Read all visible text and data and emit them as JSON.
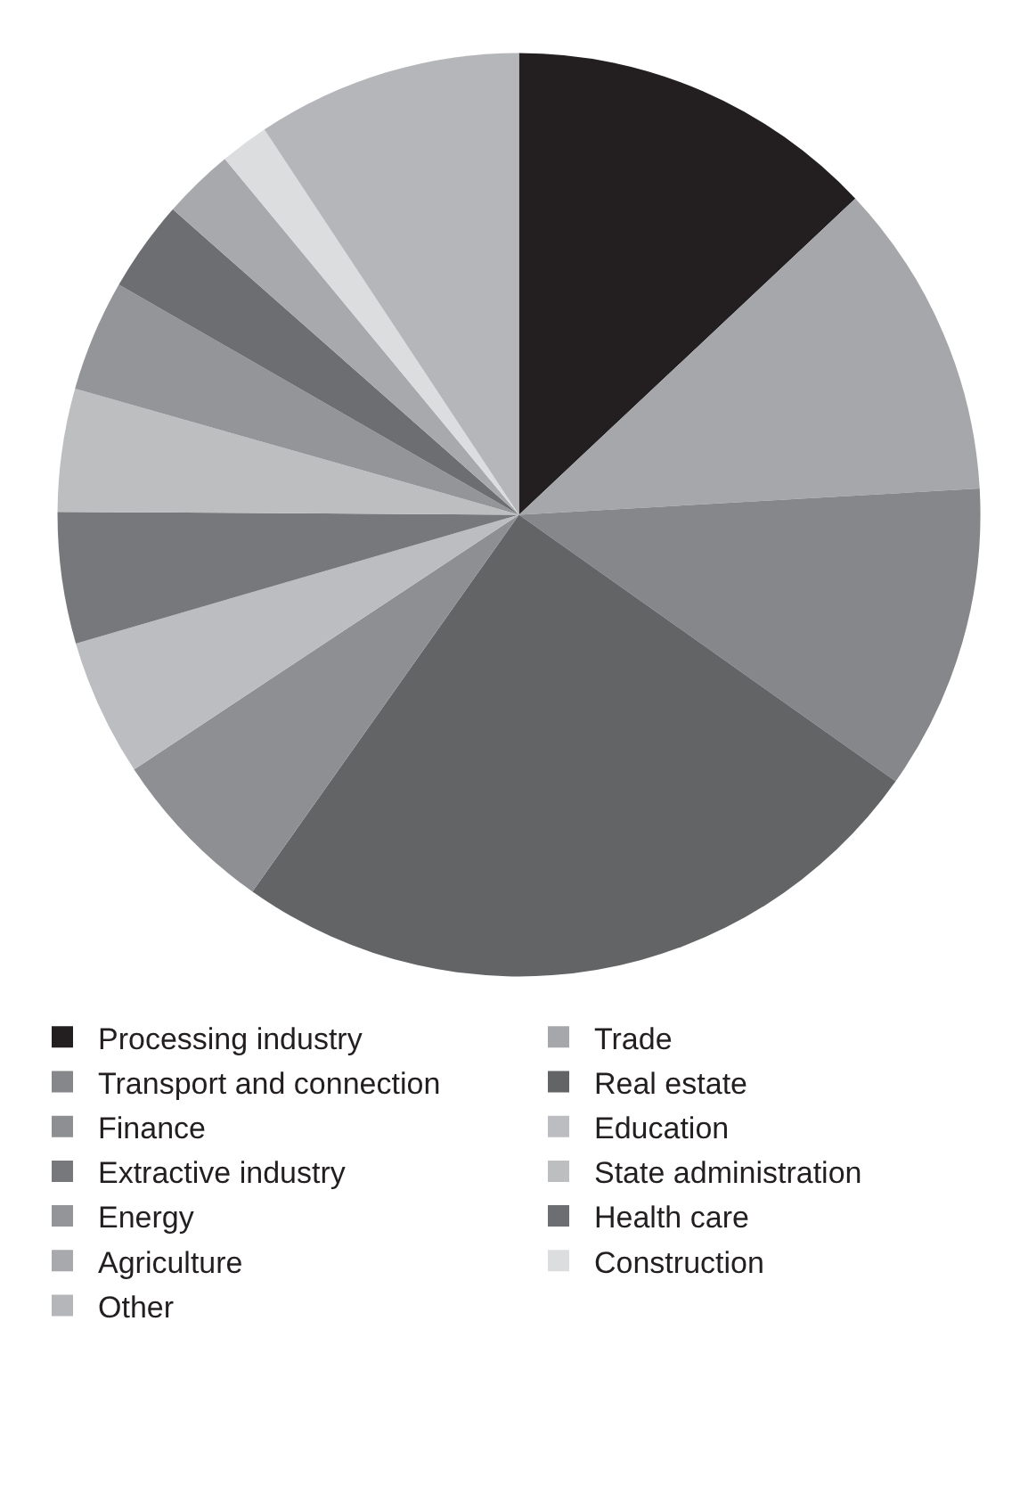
{
  "chart_data": {
    "type": "pie",
    "categories": [
      "Processing industry",
      "Trade",
      "Transport and connection",
      "Real estate",
      "Finance",
      "Education",
      "Extractive industry",
      "State administration",
      "Energy",
      "Health care",
      "Agriculture",
      "Construction",
      "Other"
    ],
    "values": [
      13.0,
      11.1,
      10.7,
      25.0,
      5.9,
      4.8,
      4.6,
      4.3,
      3.9,
      3.2,
      2.5,
      1.7,
      9.3
    ],
    "colors": [
      "#231f20",
      "#a6a7aa",
      "#86878a",
      "#636466",
      "#8e8f92",
      "#bcbdc0",
      "#77787b",
      "#bcbec0",
      "#939598",
      "#6d6e71",
      "#a7a9ac",
      "#dcdddf",
      "#b5b6b9"
    ],
    "legend": "bottom"
  }
}
